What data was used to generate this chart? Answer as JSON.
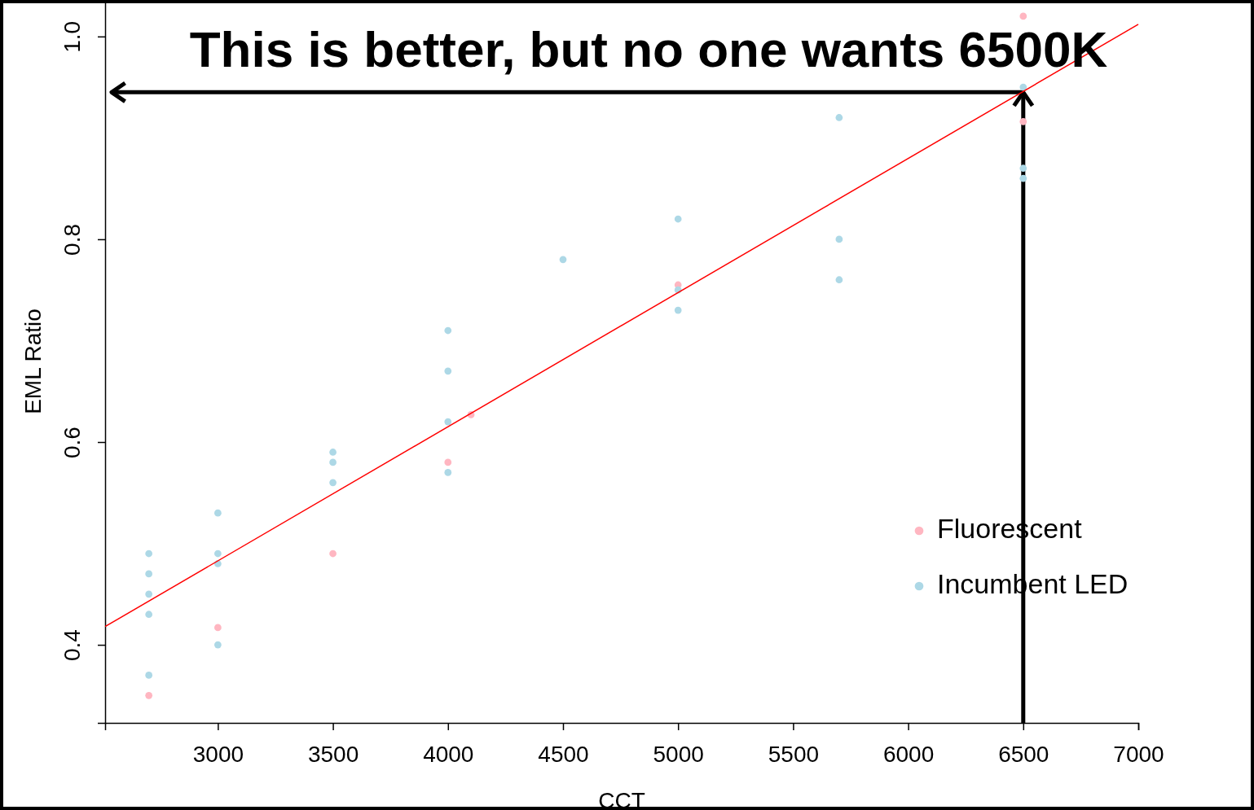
{
  "chart_data": {
    "type": "scatter",
    "title": "This is better, but no one wants 6500K",
    "xlabel": "CCT",
    "ylabel": "EML Ratio",
    "xlim": [
      2510,
      7000
    ],
    "ylim": [
      0.323,
      1.036
    ],
    "xticks": [
      3000,
      3500,
      4000,
      4500,
      5000,
      5500,
      6000,
      6500,
      7000
    ],
    "yticks": [
      0.4,
      0.6,
      0.8,
      {
        "value": 1,
        "label": "1.0"
      }
    ],
    "grid": false,
    "legend": "right",
    "marker": "circle",
    "series": [
      {
        "name": "Fluorescent",
        "color": "#ffb6c1",
        "x": [
          2700,
          3000,
          3500,
          4000,
          4100,
          5000,
          6500,
          6500
        ],
        "values": [
          0.35,
          0.417,
          0.49,
          0.58,
          0.627,
          0.755,
          1.02,
          0.916
        ]
      },
      {
        "name": "Incumbent LED",
        "color": "#add8e6",
        "x": [
          2700,
          2700,
          2700,
          2700,
          2700,
          3000,
          3000,
          3000,
          3000,
          3500,
          3500,
          3500,
          4000,
          4000,
          4000,
          4000,
          4500,
          5000,
          5000,
          5000,
          5700,
          5700,
          5700,
          6500,
          6500,
          6500
        ],
        "values": [
          0.49,
          0.47,
          0.45,
          0.43,
          0.37,
          0.53,
          0.49,
          0.48,
          0.4,
          0.59,
          0.58,
          0.56,
          0.71,
          0.67,
          0.62,
          0.57,
          0.78,
          0.82,
          0.75,
          0.73,
          0.92,
          0.8,
          0.76,
          0.95,
          0.87,
          0.86
        ]
      },
      {
        "type": "line",
        "marker": "none",
        "color": "#ff0000",
        "x": [
          2510,
          7000
        ],
        "values": [
          0.418,
          1.012
        ]
      }
    ],
    "ref_lines": [
      {
        "axis": "x",
        "value": 6500,
        "color": "#000000"
      },
      {
        "axis": "y",
        "value": 0.945,
        "color": "#000000"
      }
    ]
  }
}
